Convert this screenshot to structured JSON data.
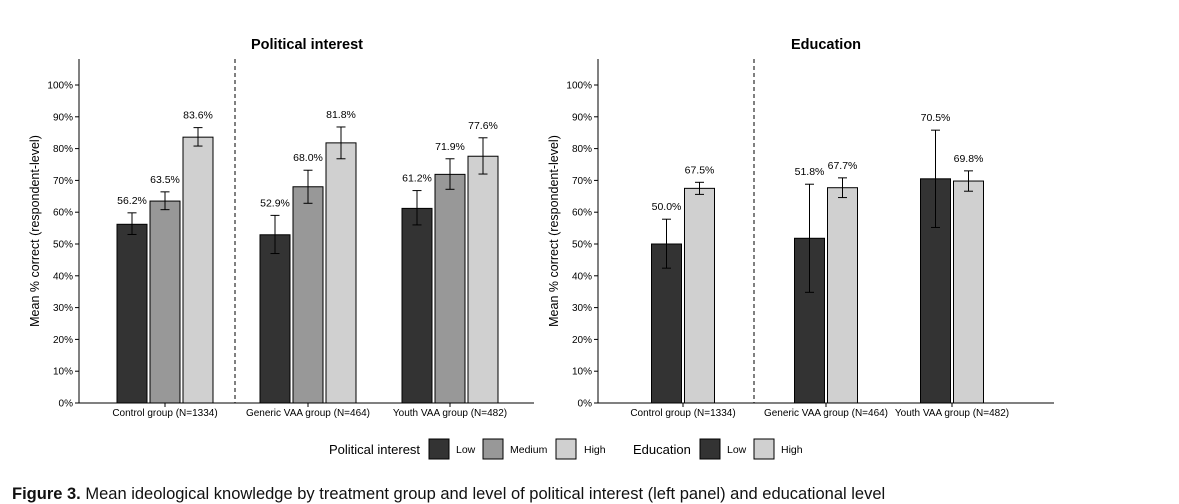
{
  "colors": {
    "low": "#333333",
    "medium": "#989898",
    "high": "#d0d0d0",
    "axis": "#000000"
  },
  "chart_data": [
    {
      "type": "bar",
      "title": "Political interest",
      "ylabel": "Mean % correct (respondent-level)",
      "xlabel": "",
      "ylim": [
        0,
        100
      ],
      "yticks": [
        "0%",
        "10%",
        "20%",
        "30%",
        "40%",
        "50%",
        "60%",
        "70%",
        "80%",
        "90%",
        "100%"
      ],
      "categories": [
        "Control group (N=1334)",
        "Generic VAA group (N=464)",
        "Youth VAA group (N=482)"
      ],
      "series": [
        {
          "name": "Low",
          "color_key": "low",
          "values": [
            56.2,
            52.9,
            61.2
          ],
          "labels": [
            "56.2%",
            "52.9%",
            "61.2%"
          ],
          "err_low": [
            53.0,
            47.0,
            56.0
          ],
          "err_high": [
            59.8,
            59.0,
            66.8
          ]
        },
        {
          "name": "Medium",
          "color_key": "medium",
          "values": [
            63.5,
            68.0,
            71.9
          ],
          "labels": [
            "63.5%",
            "68.0%",
            "71.9%"
          ],
          "err_low": [
            60.8,
            62.8,
            67.2
          ],
          "err_high": [
            66.4,
            73.2,
            76.8
          ]
        },
        {
          "name": "High",
          "color_key": "high",
          "values": [
            83.6,
            81.8,
            77.6
          ],
          "labels": [
            "83.6%",
            "81.8%",
            "77.6%"
          ],
          "err_low": [
            80.8,
            76.8,
            72.0
          ],
          "err_high": [
            86.6,
            86.8,
            83.4
          ]
        }
      ],
      "reference_line": "dashed vertical line separating control group from VAA groups"
    },
    {
      "type": "bar",
      "title": "Education",
      "ylabel": "Mean % correct (respondent-level)",
      "xlabel": "",
      "ylim": [
        0,
        100
      ],
      "yticks": [
        "0%",
        "10%",
        "20%",
        "30%",
        "40%",
        "50%",
        "60%",
        "70%",
        "80%",
        "90%",
        "100%"
      ],
      "categories": [
        "Control group (N=1334)",
        "Generic VAA group (N=464)",
        "Youth VAA group (N=482)"
      ],
      "series": [
        {
          "name": "Low",
          "color_key": "low",
          "values": [
            50.0,
            51.8,
            70.5
          ],
          "labels": [
            "50.0%",
            "51.8%",
            "70.5%"
          ],
          "err_low": [
            42.4,
            34.8,
            55.2
          ],
          "err_high": [
            57.8,
            68.8,
            85.8
          ]
        },
        {
          "name": "High",
          "color_key": "high",
          "values": [
            67.5,
            67.7,
            69.8
          ],
          "labels": [
            "67.5%",
            "67.7%",
            "69.8%"
          ],
          "err_low": [
            65.6,
            64.6,
            66.6
          ],
          "err_high": [
            69.4,
            70.8,
            73.0
          ]
        }
      ],
      "reference_line": "dashed vertical line separating control group from VAA groups"
    }
  ],
  "legend": {
    "political_interest": {
      "title": "Political interest",
      "items": [
        {
          "label": "Low",
          "color_key": "low"
        },
        {
          "label": "Medium",
          "color_key": "medium"
        },
        {
          "label": "High",
          "color_key": "high"
        }
      ]
    },
    "education": {
      "title": "Education",
      "items": [
        {
          "label": "Low",
          "color_key": "low"
        },
        {
          "label": "High",
          "color_key": "high"
        }
      ]
    }
  },
  "caption": {
    "prefix": "Figure 3.",
    "text": "Mean ideological knowledge by treatment group and level of political interest (left panel) and educational level"
  }
}
